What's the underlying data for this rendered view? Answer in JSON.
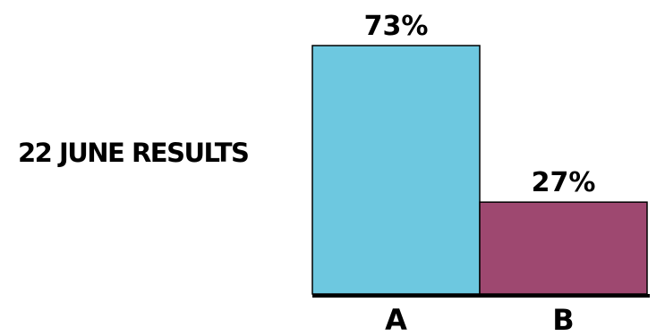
{
  "chart_data": {
    "type": "bar",
    "title": "22 JUNE RESULTS",
    "categories": [
      "A",
      "B"
    ],
    "values": [
      73,
      27
    ],
    "data_labels": [
      "73%",
      "27%"
    ],
    "colors": [
      "#6dc8e0",
      "#9e4870"
    ],
    "xlabel": "",
    "ylabel": "",
    "ylim": [
      0,
      73
    ],
    "grid": false,
    "legend": "none"
  }
}
